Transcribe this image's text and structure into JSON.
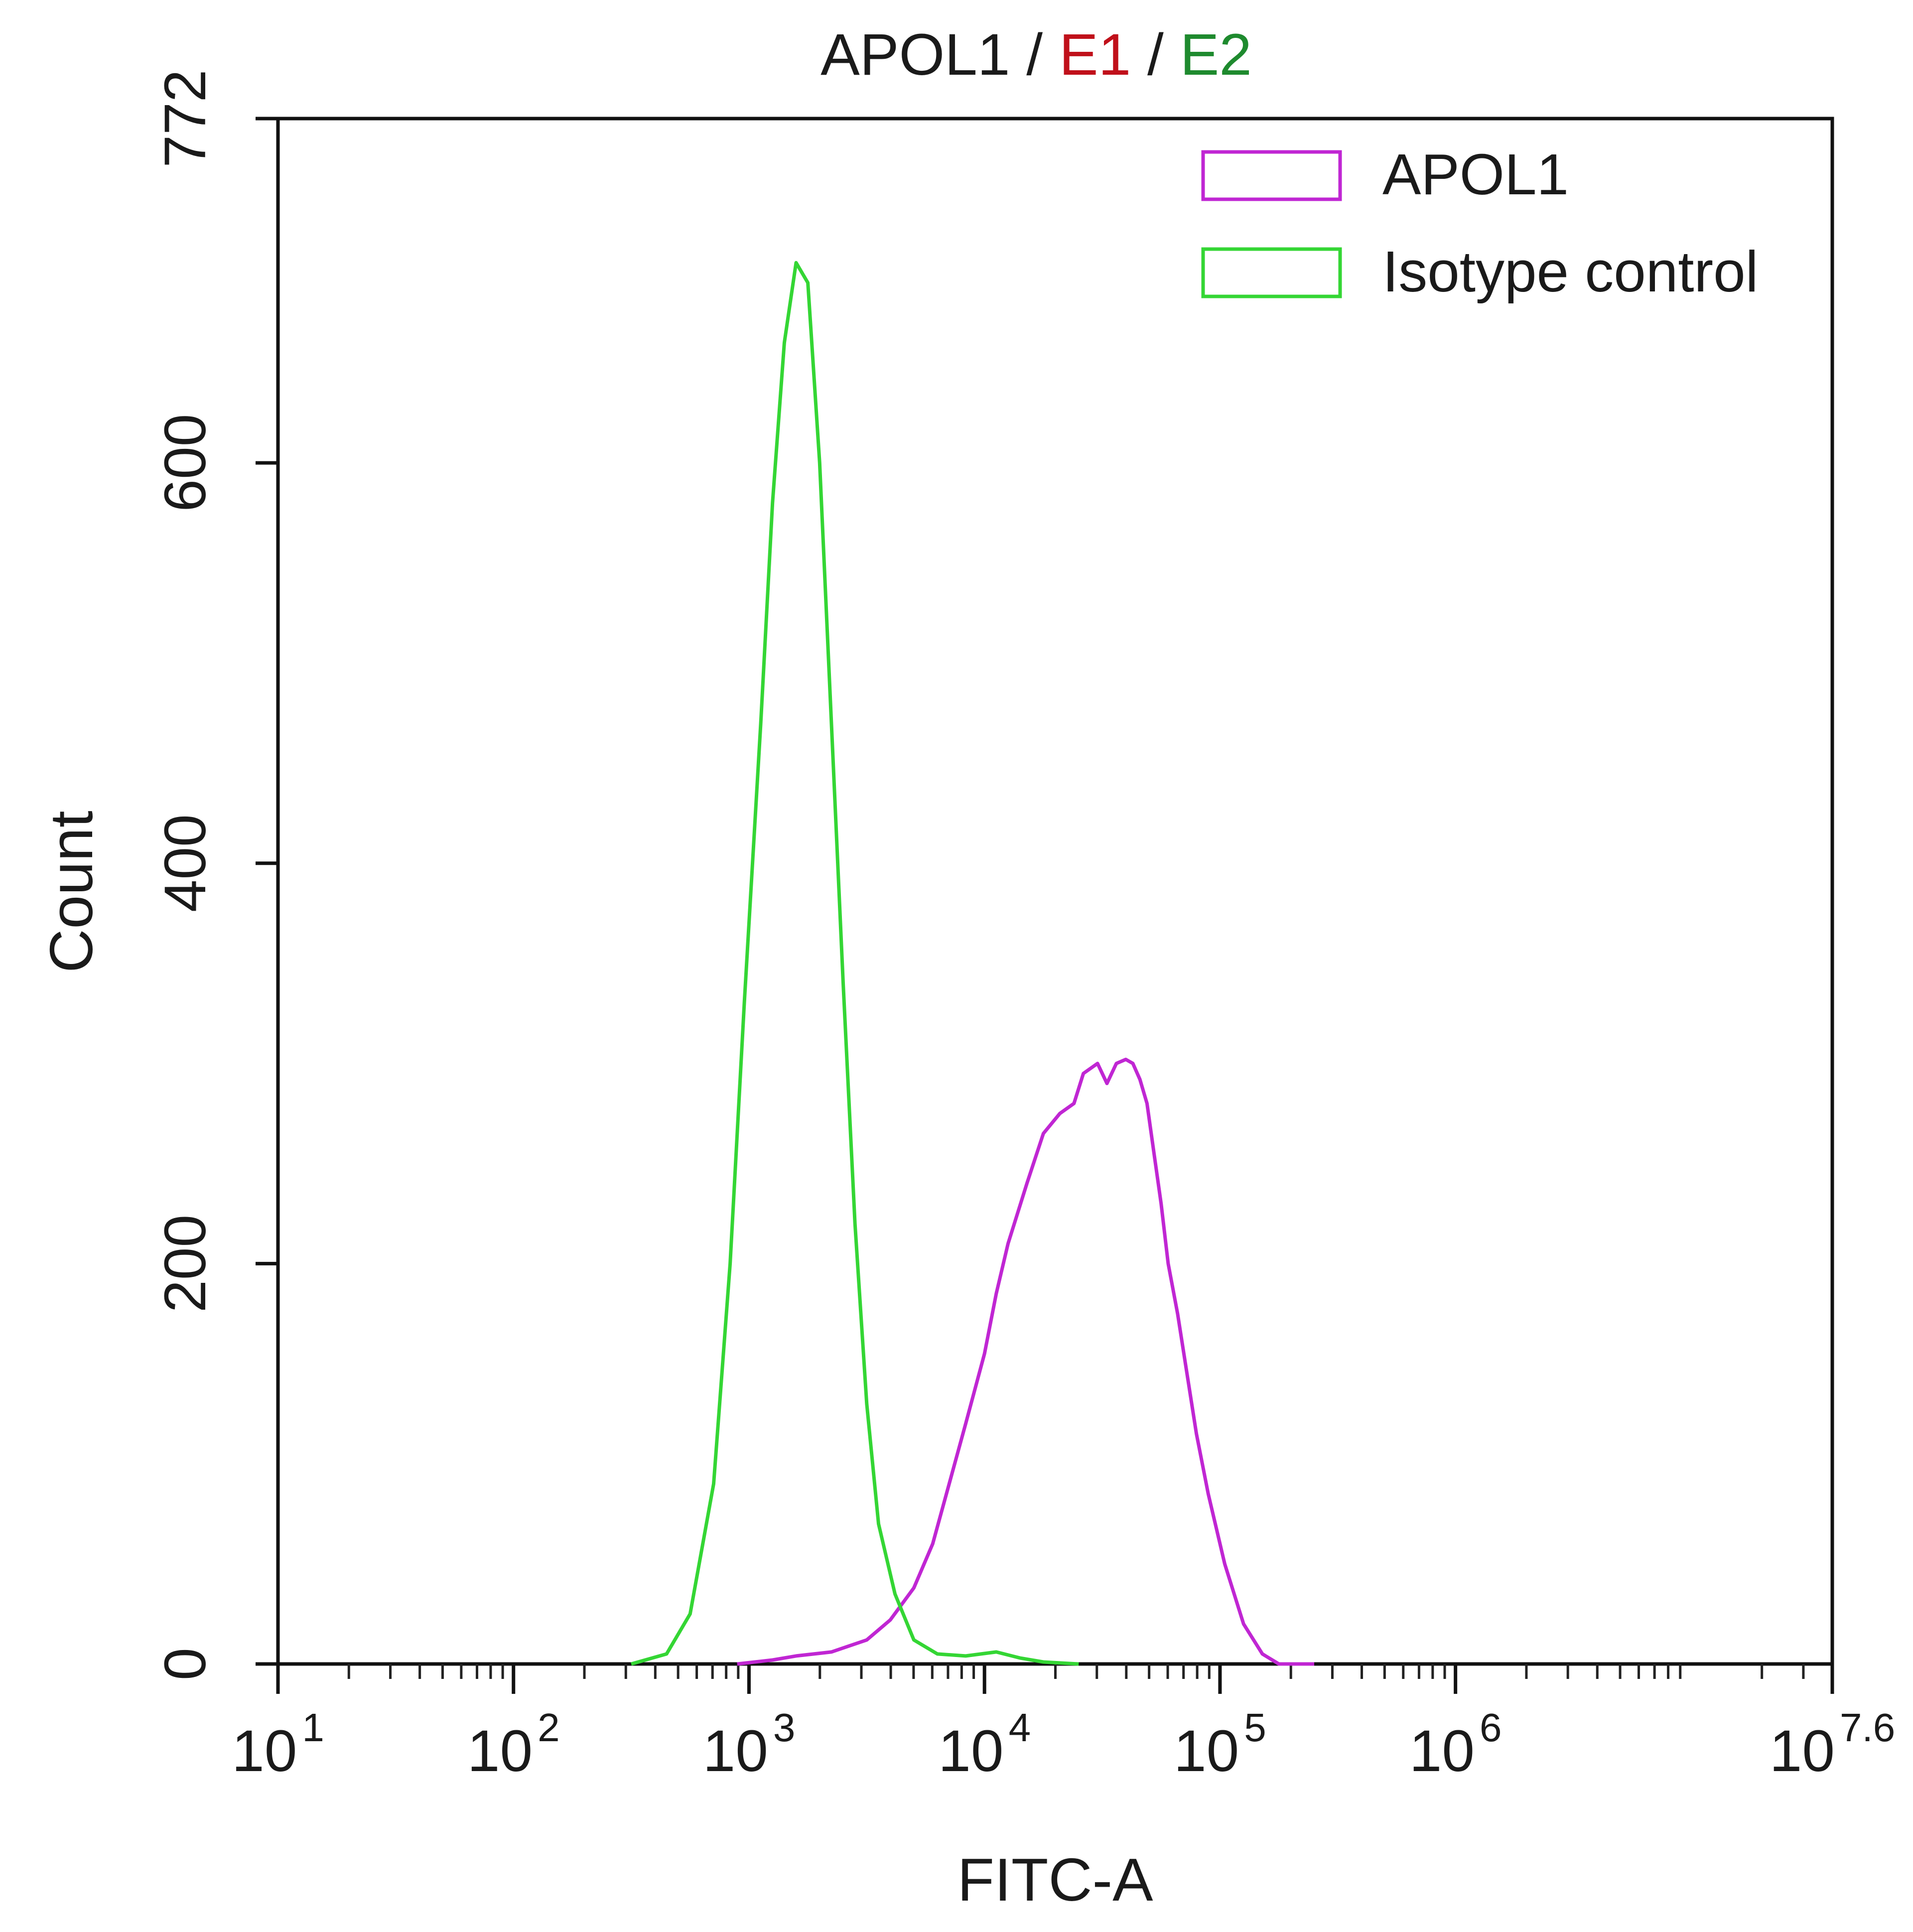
{
  "chart_data": {
    "type": "line",
    "title_parts": [
      {
        "text": "APOL1",
        "color": "#1a1a1a"
      },
      {
        "text": " / ",
        "color": "#1a1a1a"
      },
      {
        "text": "E1",
        "color": "#c0101a"
      },
      {
        "text": " / ",
        "color": "#1a1a1a"
      },
      {
        "text": "E2",
        "color": "#1e8a2e"
      }
    ],
    "xlabel": "FITC-A",
    "ylabel": "Count",
    "x_scale": "log",
    "xlim_log10": [
      1,
      7.6
    ],
    "ylim": [
      0,
      772
    ],
    "x_ticks": [
      {
        "base": "10",
        "exp": "1"
      },
      {
        "base": "10",
        "exp": "2"
      },
      {
        "base": "10",
        "exp": "3"
      },
      {
        "base": "10",
        "exp": "4"
      },
      {
        "base": "10",
        "exp": "5"
      },
      {
        "base": "10",
        "exp": "6"
      },
      {
        "base": "10",
        "exp": "7.6"
      }
    ],
    "y_ticks": [
      "0",
      "200",
      "400",
      "600",
      "772"
    ],
    "grid": false,
    "legend_position": "top-right",
    "series": [
      {
        "name": "APOL1",
        "color": "#c026d3",
        "x_log10": [
          2.95,
          3.1,
          3.2,
          3.35,
          3.5,
          3.6,
          3.7,
          3.78,
          3.85,
          3.92,
          4.0,
          4.05,
          4.1,
          4.18,
          4.25,
          4.32,
          4.38,
          4.42,
          4.48,
          4.52,
          4.56,
          4.6,
          4.63,
          4.66,
          4.69,
          4.72,
          4.75,
          4.78,
          4.82,
          4.86,
          4.9,
          4.95,
          5.02,
          5.1,
          5.18,
          5.25,
          5.32,
          5.4
        ],
        "y": [
          0,
          2,
          4,
          6,
          12,
          22,
          38,
          60,
          90,
          120,
          155,
          185,
          210,
          240,
          265,
          275,
          280,
          295,
          300,
          290,
          300,
          302,
          300,
          292,
          280,
          255,
          230,
          200,
          175,
          145,
          115,
          85,
          50,
          20,
          5,
          0,
          0,
          0
        ]
      },
      {
        "name": "Isotype control",
        "color": "#34d634",
        "x_log10": [
          2.5,
          2.65,
          2.75,
          2.85,
          2.92,
          2.98,
          3.05,
          3.1,
          3.15,
          3.2,
          3.25,
          3.3,
          3.35,
          3.4,
          3.45,
          3.5,
          3.55,
          3.62,
          3.7,
          3.8,
          3.92,
          4.05,
          4.15,
          4.25,
          4.4
        ],
        "y": [
          0,
          5,
          25,
          90,
          200,
          330,
          470,
          580,
          660,
          700,
          690,
          600,
          470,
          340,
          220,
          130,
          70,
          35,
          12,
          5,
          4,
          6,
          3,
          1,
          0
        ]
      }
    ]
  }
}
